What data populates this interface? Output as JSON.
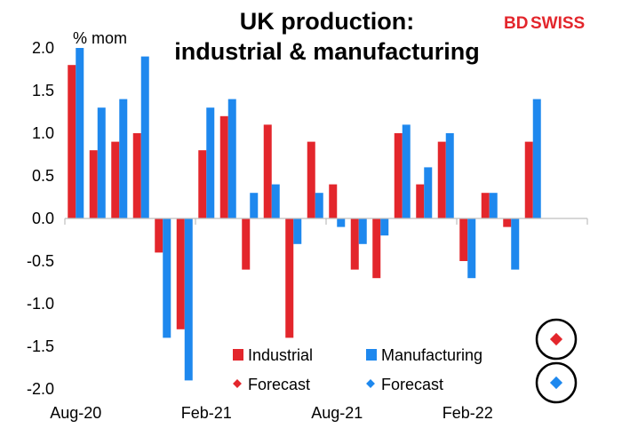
{
  "brand": {
    "logo_text_a": "BD",
    "logo_text_b": "SWISS"
  },
  "colors": {
    "industrial": "#e3262c",
    "manufacturing": "#1e88ee",
    "axis": "#bfbfbf",
    "text": "#000000"
  },
  "chart_data": {
    "type": "bar",
    "title_line1": "UK production:",
    "title_line2": "industrial & manufacturing",
    "ylabel": "% mom",
    "ylim": [
      -2.0,
      2.0
    ],
    "y_ticks": [
      "2.0",
      "1.5",
      "1.0",
      "0.5",
      "0.0",
      "-0.5",
      "-1.0",
      "-1.5",
      "-2.0"
    ],
    "categories": [
      "Aug-20",
      "Sep-20",
      "Oct-20",
      "Nov-20",
      "Dec-20",
      "Jan-21",
      "Feb-21",
      "Mar-21",
      "Apr-21",
      "May-21",
      "Jun-21",
      "Jul-21",
      "Aug-21",
      "Sep-21",
      "Oct-21",
      "Nov-21",
      "Dec-21",
      "Jan-22",
      "Feb-22",
      "Mar-22",
      "Apr-22",
      "May-22"
    ],
    "x_tick_labels": [
      "Aug-20",
      "Feb-21",
      "Aug-21",
      "Feb-22"
    ],
    "series": [
      {
        "name": "Industrial",
        "values": [
          1.8,
          0.8,
          0.9,
          1.0,
          -0.4,
          -1.3,
          0.8,
          1.2,
          -0.6,
          1.1,
          -1.4,
          0.9,
          0.4,
          -0.6,
          -0.7,
          1.0,
          0.4,
          0.9,
          -0.5,
          0.3,
          -0.1,
          0.9
        ]
      },
      {
        "name": "Manufacturing",
        "values": [
          2.0,
          1.3,
          1.4,
          1.9,
          -1.4,
          -1.9,
          1.3,
          1.4,
          0.3,
          0.4,
          -0.3,
          0.3,
          -0.1,
          -0.3,
          -0.2,
          1.1,
          0.6,
          1.0,
          -0.7,
          0.3,
          -0.6,
          1.4
        ]
      }
    ],
    "legend": {
      "industrial": "Industrial",
      "manufacturing": "Manufacturing",
      "forecast_industrial": "Forecast",
      "forecast_manufacturing": "Forecast"
    },
    "grid": false
  }
}
